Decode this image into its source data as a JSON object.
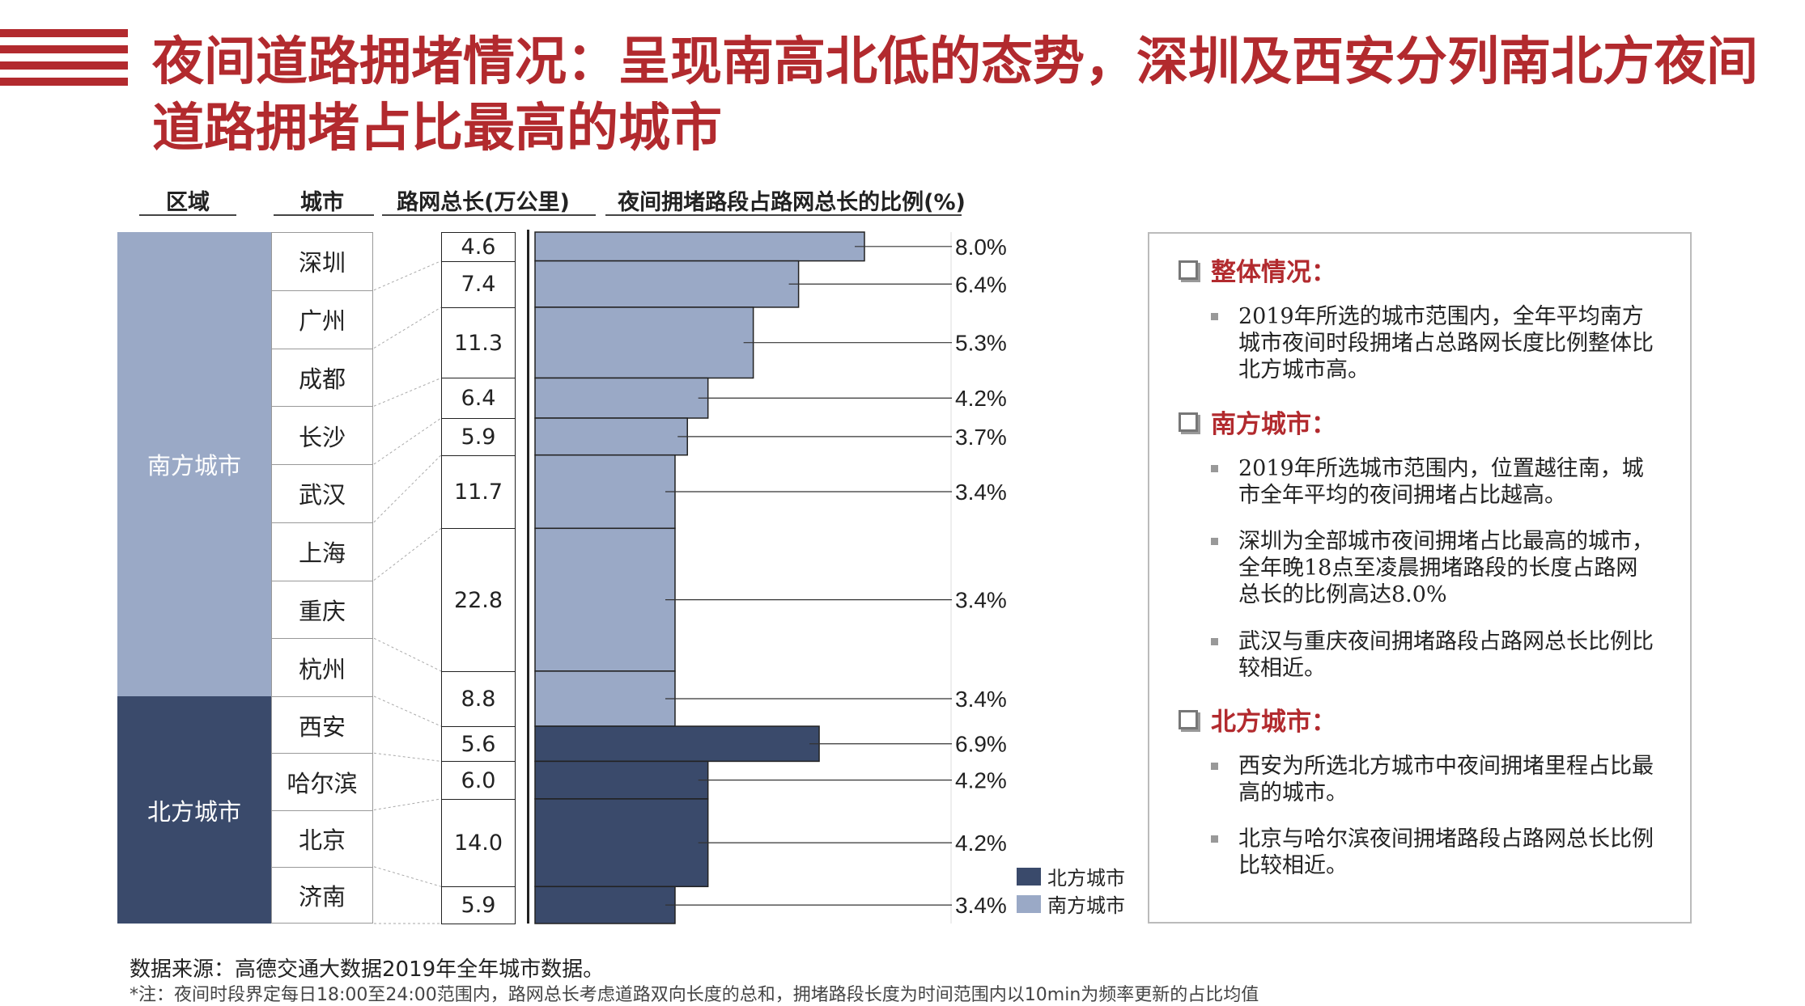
{
  "title": "夜间道路拥堵情况：呈现南高北低的态势，深圳及西安分列南北方夜间道路拥堵占比最高的城市",
  "colors": {
    "accent": "#b22a2e",
    "south": "#9aa9c6",
    "north": "#3a4a6b"
  },
  "headers": {
    "region": "区域",
    "city": "城市",
    "length": "路网总长(万公里)",
    "ratio": "夜间拥堵路段占路网总长的比例(%)"
  },
  "regions": {
    "south": "南方城市",
    "north": "北方城市"
  },
  "cities": [
    "深圳",
    "广州",
    "成都",
    "长沙",
    "武汉",
    "上海",
    "重庆",
    "杭州",
    "西安",
    "哈尔滨",
    "北京",
    "济南"
  ],
  "chart_data": {
    "type": "bar",
    "orientation": "horizontal",
    "categories": [
      "深圳",
      "广州",
      "成都",
      "长沙",
      "武汉",
      "上海",
      "重庆",
      "杭州",
      "西安",
      "哈尔滨",
      "北京",
      "济南"
    ],
    "region": [
      "南方城市",
      "南方城市",
      "南方城市",
      "南方城市",
      "南方城市",
      "南方城市",
      "南方城市",
      "南方城市",
      "北方城市",
      "北方城市",
      "北方城市",
      "北方城市"
    ],
    "road_length": [
      4.6,
      7.4,
      11.3,
      6.4,
      5.9,
      11.7,
      22.8,
      8.8,
      5.6,
      6.0,
      14.0,
      5.9
    ],
    "road_length_labels": [
      "4.6",
      "7.4",
      "11.3",
      "6.4",
      "5.9",
      "11.7",
      "22.8",
      "8.8",
      "5.6",
      "6.0",
      "14.0",
      "5.9"
    ],
    "values": [
      8.0,
      6.4,
      5.3,
      4.2,
      3.7,
      3.4,
      3.4,
      3.4,
      6.9,
      4.2,
      4.2,
      3.4
    ],
    "value_labels": [
      "8.0%",
      "6.4%",
      "5.3%",
      "4.2%",
      "3.7%",
      "3.4%",
      "3.4%",
      "3.4%",
      "6.9%",
      "4.2%",
      "4.2%",
      "3.4%"
    ],
    "legend": [
      {
        "name": "北方城市",
        "color": "#3a4a6b"
      },
      {
        "name": "南方城市",
        "color": "#9aa9c6"
      }
    ],
    "legend_position": "bottom-right"
  },
  "panel": {
    "sections": [
      {
        "heading": "整体情况：",
        "bullets": [
          "2019年所选的城市范围内，全年平均南方城市夜间时段拥堵占总路网长度比例整体比北方城市高。"
        ]
      },
      {
        "heading": "南方城市：",
        "bullets": [
          "2019年所选城市范围内，位置越往南，城市全年平均的夜间拥堵占比越高。",
          "深圳为全部城市夜间拥堵占比最高的城市，全年晚18点至凌晨拥堵路段的长度占路网总长的比例高达8.0%",
          "武汉与重庆夜间拥堵路段占路网总长比例比较相近。"
        ]
      },
      {
        "heading": "北方城市：",
        "bullets": [
          "西安为所选北方城市中夜间拥堵里程占比最高的城市。",
          "北京与哈尔滨夜间拥堵路段占路网总长比例比较相近。"
        ]
      }
    ]
  },
  "footer": {
    "source": "数据来源：高德交通大数据2019年全年城市数据。",
    "note": "*注：夜间时段界定每日18:00至24:00范围内，路网总长考虑道路双向长度的总和，拥堵路段长度为时间范围内以10min为频率更新的占比均值"
  }
}
